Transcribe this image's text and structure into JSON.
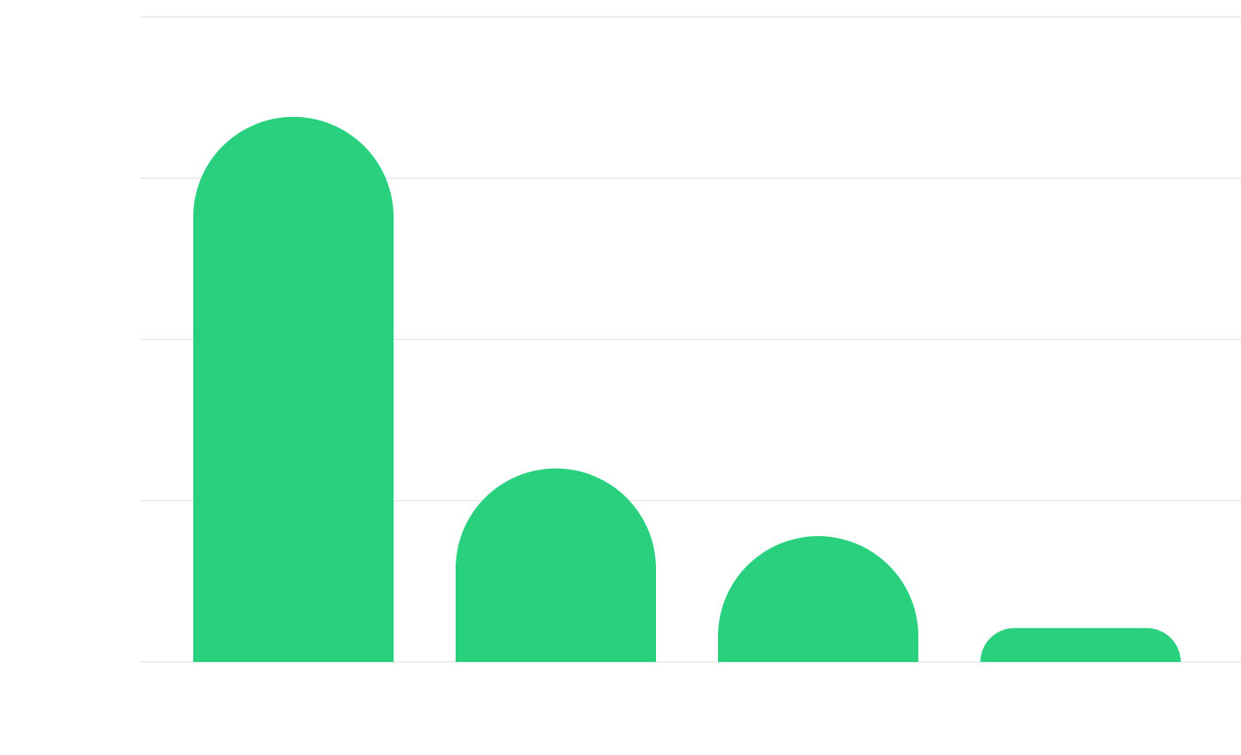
{
  "chart_data": {
    "type": "bar",
    "categories": [
      "",
      "",
      "",
      ""
    ],
    "values": [
      3.38,
      1.2,
      0.78,
      0.21
    ],
    "ylim": [
      0,
      4
    ],
    "yticks": [
      0,
      1,
      2,
      3,
      4
    ],
    "grid": true,
    "legend": "none",
    "bar_color": "#29d17f",
    "grid_color": "#eeeeee",
    "title": "",
    "xlabel": "",
    "ylabel": ""
  }
}
